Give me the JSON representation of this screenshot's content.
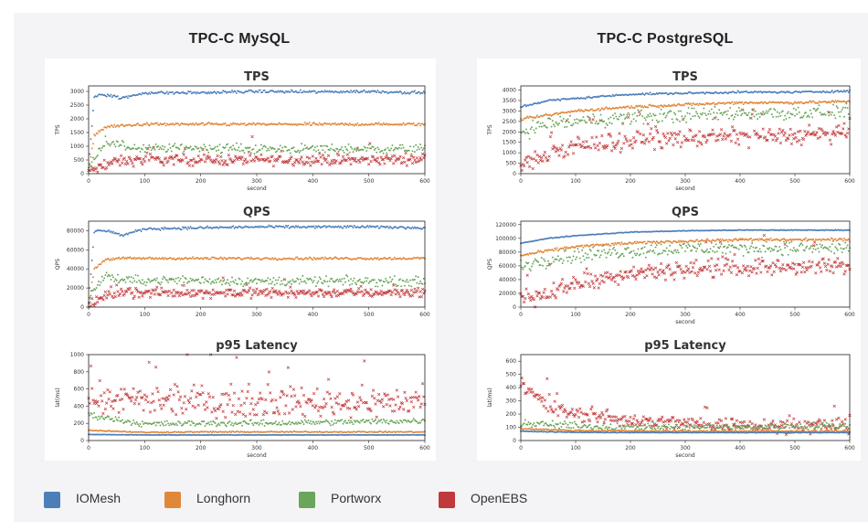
{
  "columns": [
    {
      "title": "TPC-C MySQL"
    },
    {
      "title": "TPC-C PostgreSQL"
    }
  ],
  "legend": [
    {
      "label": "IOMesh",
      "color": "#4c7fb8"
    },
    {
      "label": "Longhorn",
      "color": "#e0883a"
    },
    {
      "label": "Portworx",
      "color": "#6aa55a"
    },
    {
      "label": "OpenEBS",
      "color": "#c0393b"
    }
  ],
  "chart_data": [
    {
      "type": "scatter",
      "title": "TPS",
      "xlabel": "second",
      "ylabel": "TPS",
      "xlim": [
        0,
        600
      ],
      "ylim": [
        0,
        3200
      ],
      "xticks": [
        0,
        100,
        200,
        300,
        400,
        500,
        600
      ],
      "yticks": [
        0,
        500,
        1000,
        1500,
        2000,
        2500,
        3000
      ],
      "series": [
        {
          "name": "IOMesh",
          "marker": "dot",
          "x": [
            0,
            10,
            20,
            40,
            60,
            100,
            200,
            300,
            400,
            500,
            600
          ],
          "y": [
            200,
            2800,
            2900,
            2850,
            2750,
            2950,
            2950,
            3000,
            2980,
            3000,
            2950
          ],
          "spread": 80
        },
        {
          "name": "Longhorn",
          "marker": "dot",
          "x": [
            0,
            10,
            30,
            60,
            100,
            200,
            300,
            400,
            500,
            600
          ],
          "y": [
            100,
            1400,
            1700,
            1750,
            1800,
            1800,
            1800,
            1800,
            1800,
            1800
          ],
          "spread": 80
        },
        {
          "name": "Portworx",
          "marker": "dot",
          "x": [
            0,
            10,
            30,
            60,
            100,
            200,
            300,
            400,
            500,
            600
          ],
          "y": [
            100,
            600,
            1200,
            1000,
            900,
            950,
            900,
            900,
            900,
            900
          ],
          "spread": 250
        },
        {
          "name": "OpenEBS",
          "marker": "x",
          "x": [
            0,
            20,
            40,
            60,
            100,
            200,
            300,
            400,
            500,
            600
          ],
          "y": [
            100,
            200,
            400,
            450,
            500,
            500,
            500,
            500,
            500,
            550
          ],
          "spread": 280
        }
      ]
    },
    {
      "type": "scatter",
      "title": "TPS",
      "xlabel": "second",
      "ylabel": "TPS",
      "xlim": [
        0,
        600
      ],
      "ylim": [
        0,
        4200
      ],
      "xticks": [
        0,
        100,
        200,
        300,
        400,
        500,
        600
      ],
      "yticks": [
        0,
        500,
        1000,
        1500,
        2000,
        2500,
        3000,
        3500,
        4000
      ],
      "series": [
        {
          "name": "IOMesh",
          "marker": "dot",
          "x": [
            0,
            50,
            100,
            200,
            300,
            400,
            500,
            600
          ],
          "y": [
            3200,
            3500,
            3600,
            3800,
            3850,
            3900,
            3900,
            3950
          ],
          "spread": 70
        },
        {
          "name": "Longhorn",
          "marker": "dot",
          "x": [
            0,
            50,
            100,
            200,
            300,
            400,
            500,
            600
          ],
          "y": [
            2600,
            2800,
            3000,
            3200,
            3300,
            3400,
            3400,
            3450
          ],
          "spread": 100
        },
        {
          "name": "Portworx",
          "marker": "dot",
          "x": [
            0,
            50,
            100,
            200,
            300,
            400,
            500,
            600
          ],
          "y": [
            2000,
            2400,
            2500,
            2700,
            2800,
            2900,
            2900,
            3000
          ],
          "spread": 500
        },
        {
          "name": "OpenEBS",
          "marker": "x",
          "x": [
            0,
            50,
            100,
            200,
            300,
            400,
            500,
            600
          ],
          "y": [
            400,
            900,
            1300,
            1600,
            1700,
            1800,
            1800,
            1900
          ],
          "spread": 600
        }
      ]
    },
    {
      "type": "scatter",
      "title": "QPS",
      "xlabel": "",
      "ylabel": "QPS",
      "xlim": [
        0,
        600
      ],
      "ylim": [
        0,
        90000
      ],
      "xticks": [
        0,
        100,
        200,
        300,
        400,
        500,
        600
      ],
      "yticks": [
        0,
        20000,
        40000,
        60000,
        80000
      ],
      "series": [
        {
          "name": "IOMesh",
          "marker": "dot",
          "x": [
            0,
            10,
            20,
            40,
            60,
            100,
            200,
            300,
            400,
            500,
            600
          ],
          "y": [
            5000,
            78000,
            81000,
            79000,
            75000,
            82000,
            83000,
            84000,
            84000,
            84000,
            83000
          ],
          "spread": 2000
        },
        {
          "name": "Longhorn",
          "marker": "dot",
          "x": [
            0,
            10,
            30,
            60,
            100,
            200,
            300,
            400,
            500,
            600
          ],
          "y": [
            3000,
            40000,
            50000,
            51000,
            51000,
            51000,
            51000,
            51000,
            51000,
            51000
          ],
          "spread": 2000
        },
        {
          "name": "Portworx",
          "marker": "dot",
          "x": [
            0,
            10,
            30,
            60,
            100,
            200,
            300,
            400,
            500,
            600
          ],
          "y": [
            3000,
            20000,
            33000,
            28000,
            28000,
            28000,
            27000,
            27000,
            27000,
            27000
          ],
          "spread": 7000
        },
        {
          "name": "OpenEBS",
          "marker": "x",
          "x": [
            0,
            20,
            40,
            60,
            100,
            200,
            300,
            400,
            500,
            600
          ],
          "y": [
            2000,
            8000,
            13000,
            14000,
            15000,
            15000,
            15000,
            15000,
            15000,
            16000
          ],
          "spread": 7000
        }
      ]
    },
    {
      "type": "scatter",
      "title": "QPS",
      "xlabel": "second",
      "ylabel": "QPS",
      "xlim": [
        0,
        600
      ],
      "ylim": [
        0,
        125000
      ],
      "xticks": [
        0,
        100,
        200,
        300,
        400,
        500,
        600
      ],
      "yticks": [
        0,
        20000,
        40000,
        60000,
        80000,
        100000,
        120000
      ],
      "series": [
        {
          "name": "IOMesh",
          "marker": "dot",
          "x": [
            0,
            50,
            100,
            200,
            300,
            400,
            500,
            600
          ],
          "y": [
            93000,
            100000,
            104000,
            109000,
            111000,
            112000,
            112000,
            112000
          ],
          "spread": 800
        },
        {
          "name": "Longhorn",
          "marker": "dot",
          "x": [
            0,
            50,
            100,
            200,
            300,
            400,
            500,
            600
          ],
          "y": [
            75000,
            82000,
            88000,
            93000,
            96000,
            98000,
            98000,
            98000
          ],
          "spread": 3000
        },
        {
          "name": "Portworx",
          "marker": "dot",
          "x": [
            0,
            50,
            100,
            200,
            300,
            400,
            500,
            600
          ],
          "y": [
            60000,
            70000,
            75000,
            82000,
            85000,
            86000,
            86000,
            86000
          ],
          "spread": 15000
        },
        {
          "name": "OpenEBS",
          "marker": "x",
          "x": [
            0,
            50,
            100,
            200,
            300,
            400,
            500,
            600
          ],
          "y": [
            12000,
            20000,
            35000,
            50000,
            55000,
            58000,
            58000,
            58000
          ],
          "spread": 18000
        }
      ]
    },
    {
      "type": "scatter",
      "title": "p95 Latency",
      "xlabel": "second",
      "ylabel": "lat(ms)",
      "xlim": [
        0,
        600
      ],
      "ylim": [
        0,
        1000
      ],
      "xticks": [
        0,
        100,
        200,
        300,
        400,
        500,
        600
      ],
      "yticks": [
        0,
        200,
        400,
        600,
        800,
        1000
      ],
      "series": [
        {
          "name": "IOMesh",
          "marker": "dot",
          "x": [
            0,
            100,
            200,
            300,
            400,
            500,
            600
          ],
          "y": [
            70,
            65,
            65,
            65,
            65,
            65,
            65
          ],
          "spread": 4
        },
        {
          "name": "Longhorn",
          "marker": "dot",
          "x": [
            0,
            100,
            200,
            300,
            400,
            500,
            600
          ],
          "y": [
            120,
            95,
            100,
            100,
            100,
            100,
            100
          ],
          "spread": 10
        },
        {
          "name": "Portworx",
          "marker": "dot",
          "x": [
            0,
            100,
            200,
            300,
            400,
            500,
            600
          ],
          "y": [
            300,
            190,
            200,
            200,
            210,
            220,
            230
          ],
          "spread": 50
        },
        {
          "name": "OpenEBS",
          "marker": "x",
          "x": [
            0,
            100,
            200,
            300,
            400,
            500,
            600
          ],
          "y": [
            500,
            450,
            450,
            450,
            450,
            450,
            450
          ],
          "spread": 250
        }
      ]
    },
    {
      "type": "scatter",
      "title": "p95 Latency",
      "xlabel": "second",
      "ylabel": "lat(ms)",
      "xlim": [
        0,
        600
      ],
      "ylim": [
        0,
        650
      ],
      "xticks": [
        0,
        100,
        200,
        300,
        400,
        500,
        600
      ],
      "yticks": [
        0,
        100,
        200,
        300,
        400,
        500,
        600
      ],
      "series": [
        {
          "name": "IOMesh",
          "marker": "dot",
          "x": [
            0,
            100,
            200,
            300,
            400,
            500,
            600
          ],
          "y": [
            70,
            62,
            60,
            60,
            60,
            60,
            60
          ],
          "spread": 3
        },
        {
          "name": "Longhorn",
          "marker": "dot",
          "x": [
            0,
            100,
            200,
            300,
            400,
            500,
            600
          ],
          "y": [
            90,
            75,
            72,
            70,
            70,
            70,
            70
          ],
          "spread": 8
        },
        {
          "name": "Portworx",
          "marker": "dot",
          "x": [
            0,
            100,
            200,
            300,
            400,
            500,
            600
          ],
          "y": [
            130,
            110,
            100,
            100,
            100,
            110,
            110
          ],
          "spread": 40
        },
        {
          "name": "OpenEBS",
          "marker": "x",
          "x": [
            0,
            50,
            100,
            200,
            300,
            400,
            500,
            600
          ],
          "y": [
            450,
            250,
            200,
            150,
            130,
            120,
            110,
            110
          ],
          "spread": 80
        }
      ]
    }
  ]
}
